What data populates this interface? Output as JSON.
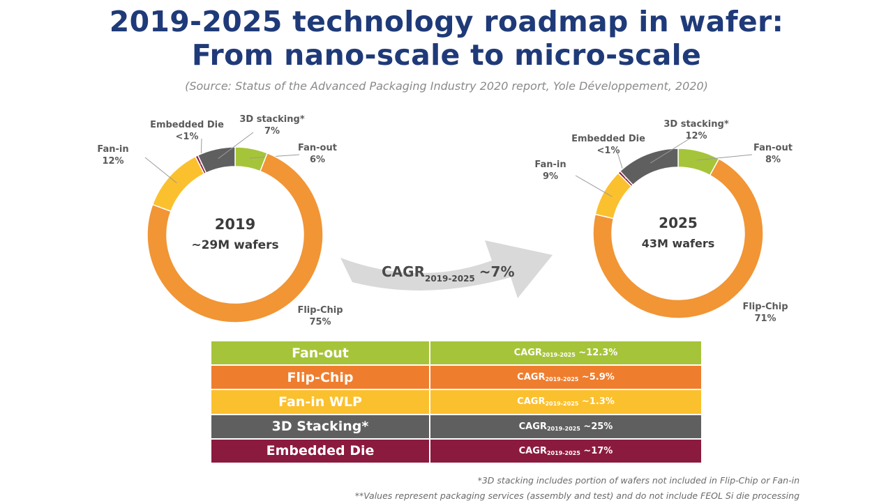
{
  "title": {
    "line1": "2019-2025 technology roadmap in wafer:",
    "line2": "From nano-scale to micro-scale"
  },
  "source": "(Source: Status of the Advanced Packaging Industry 2020 report, Yole Développement, 2020)",
  "colors": {
    "fan_out": "#a6c43a",
    "flip_chip": "#f19535",
    "fan_in": "#fbc02d",
    "stacking_3d": "#5f5f5f",
    "embedded_die": "#8b1a3f",
    "title": "#1f3a78",
    "arrow": "#d9d9d9"
  },
  "chart_data": [
    {
      "type": "pie",
      "variant": "donut",
      "center_line1": "2019",
      "center_line2": "~29M wafers",
      "slices": [
        {
          "name": "Fan-out",
          "value": 6,
          "label_value": "6%"
        },
        {
          "name": "Flip-Chip",
          "value": 75,
          "label_value": "75%"
        },
        {
          "name": "Fan-in",
          "value": 12,
          "label_value": "12%"
        },
        {
          "name": "Embedded Die",
          "value": 0.5,
          "label_value": "<1%"
        },
        {
          "name": "3D stacking*",
          "value": 7,
          "label_value": "7%"
        }
      ]
    },
    {
      "type": "pie",
      "variant": "donut",
      "center_line1": "2025",
      "center_line2": "43M wafers",
      "slices": [
        {
          "name": "Fan-out",
          "value": 8,
          "label_value": "8%"
        },
        {
          "name": "Flip-Chip",
          "value": 71,
          "label_value": "71%"
        },
        {
          "name": "Fan-in",
          "value": 9,
          "label_value": "9%"
        },
        {
          "name": "Embedded Die",
          "value": 0.5,
          "label_value": "<1%"
        },
        {
          "name": "3D stacking*",
          "value": 12,
          "label_value": "12%"
        }
      ]
    }
  ],
  "arrow": {
    "label": "CAGR",
    "sub": "2019-2025",
    "value": "~7%"
  },
  "table": {
    "rows": [
      {
        "tech": "Fan-out",
        "prefix": "CAGR",
        "sub": "2019-2025",
        "value": "~12.3%",
        "color": "#a6c43a"
      },
      {
        "tech": "Flip-Chip",
        "prefix": "CAGR",
        "sub": "2019-2025",
        "value": "~5.9%",
        "color": "#ef7d2e"
      },
      {
        "tech": "Fan-in WLP",
        "prefix": "CAGR",
        "sub": "2019-2025",
        "value": "~1.3%",
        "color": "#fbc02d"
      },
      {
        "tech": "3D Stacking*",
        "prefix": "CAGR",
        "sub": "2019-2025",
        "value": "~25%",
        "color": "#5f5f5f"
      },
      {
        "tech": "Embedded Die",
        "prefix": "CAGR",
        "sub": "2019-2025",
        "value": "~17%",
        "color": "#8b1a3f"
      }
    ]
  },
  "footnotes": [
    "*3D stacking includes portion of wafers not included in Flip-Chip or Fan-in",
    "**Values represent packaging services (assembly and test) and do not include FEOL Si die processing"
  ]
}
